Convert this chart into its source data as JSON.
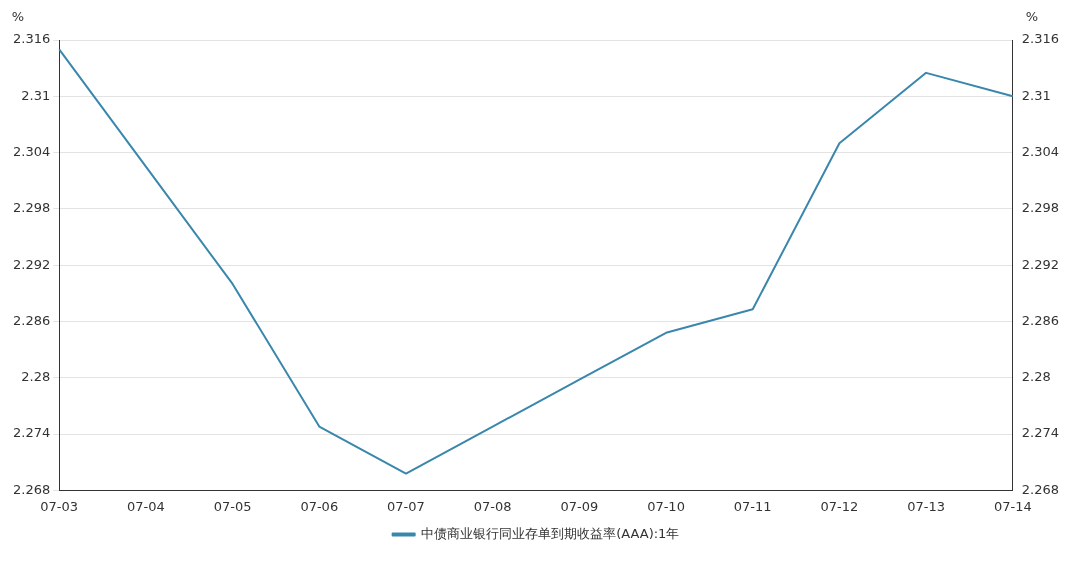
{
  "chart_data": {
    "type": "line",
    "ylabel": "%",
    "y2label": "%",
    "categories": [
      "07-03",
      "07-04",
      "07-05",
      "07-06",
      "07-07",
      "07-08",
      "07-09",
      "07-10",
      "07-11",
      "07-12",
      "07-13",
      "07-14"
    ],
    "series": [
      {
        "name": "中债商业银行同业存单到期收益率(AAA):1年",
        "color": "#3a87ad",
        "values": [
          2.315,
          2.3025,
          2.29,
          2.2748,
          2.2698,
          2.2748,
          2.2798,
          2.2848,
          2.2873,
          2.305,
          2.3125,
          2.31
        ]
      }
    ],
    "ylim": [
      2.268,
      2.316
    ],
    "yticks": [
      2.268,
      2.274,
      2.28,
      2.286,
      2.292,
      2.298,
      2.304,
      2.31,
      2.316
    ],
    "y2lim": [
      2.268,
      2.316
    ],
    "y2ticks": [
      2.268,
      2.274,
      2.28,
      2.286,
      2.292,
      2.298,
      2.304,
      2.31,
      2.316
    ],
    "grid": "y",
    "legend": "bottom",
    "marker": "none",
    "line_style": "solid"
  }
}
